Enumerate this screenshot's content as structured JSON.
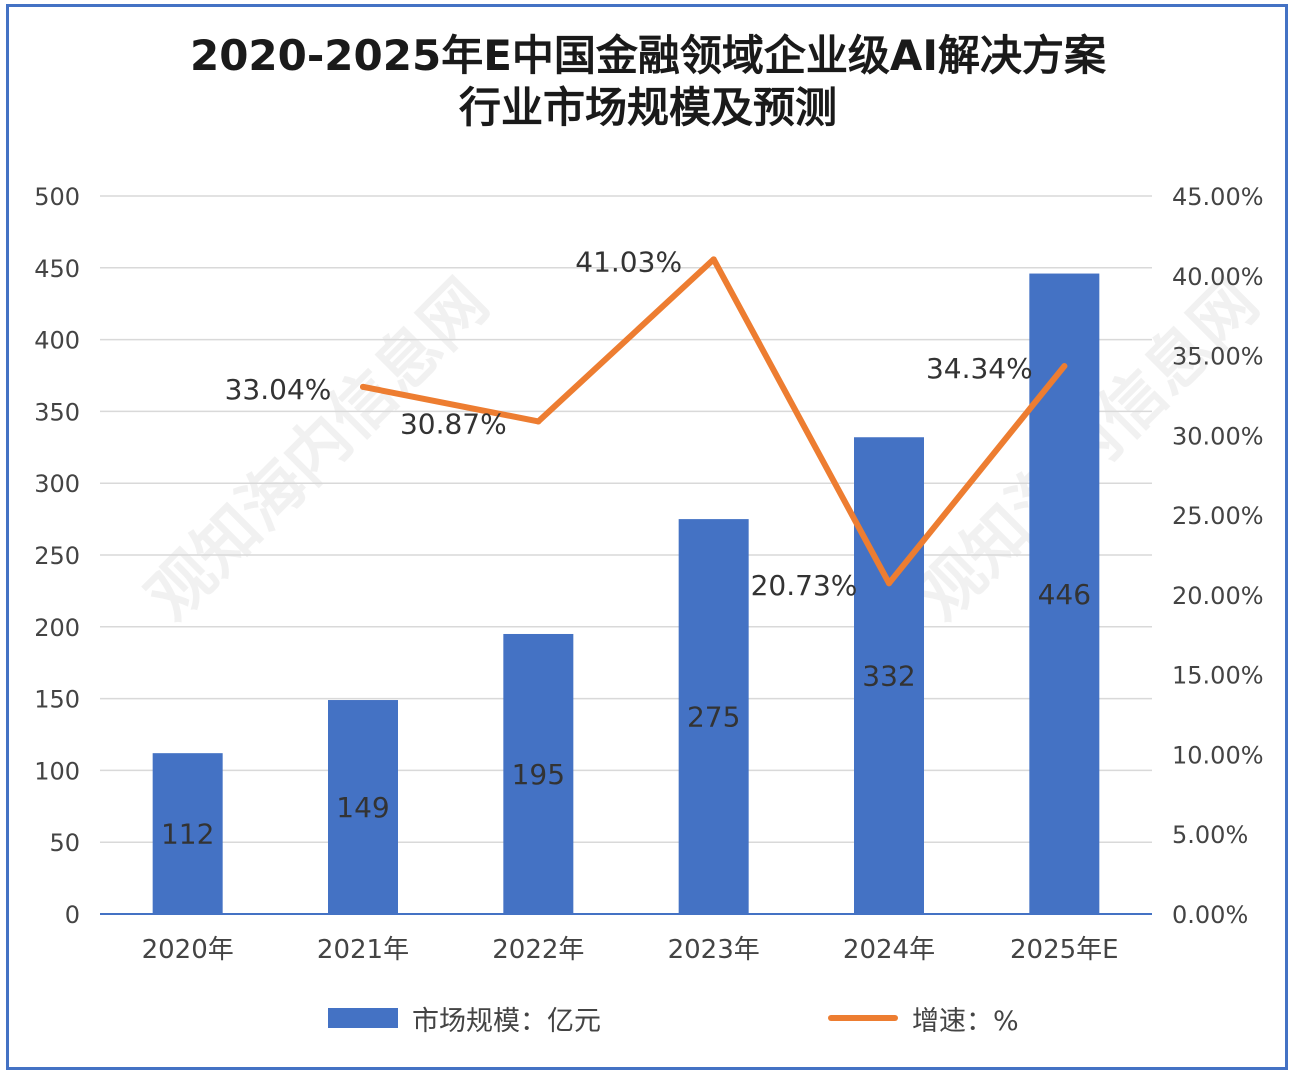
{
  "title": {
    "line1": "2020-2025年E中国金融领域企业级AI解决方案",
    "line2": "行业市场规模及预测"
  },
  "watermark": "观知海内信息网",
  "colors": {
    "bar": "#4472c4",
    "line": "#ed7d31",
    "frame": "#4472c4"
  },
  "legend": {
    "bar_label": "市场规模：亿元",
    "line_label": "增速：%"
  },
  "chart_data": {
    "type": "bar+line",
    "categories": [
      "2020年",
      "2021年",
      "2022年",
      "2023年",
      "2024年",
      "2025年E"
    ],
    "series": [
      {
        "name": "市场规模：亿元",
        "type": "bar",
        "axis": "left",
        "values": [
          112,
          149,
          195,
          275,
          332,
          446
        ],
        "labels": [
          "112",
          "149",
          "195",
          "275",
          "332",
          "446"
        ]
      },
      {
        "name": "增速：%",
        "type": "line",
        "axis": "right",
        "values": [
          null,
          33.04,
          30.87,
          41.03,
          20.73,
          34.34
        ],
        "labels": [
          "",
          "33.04%",
          "30.87%",
          "41.03%",
          "20.73%",
          "34.34%"
        ]
      }
    ],
    "y_left": {
      "min": 0,
      "max": 500,
      "ticks": [
        "0",
        "50",
        "100",
        "150",
        "200",
        "250",
        "300",
        "350",
        "400",
        "450",
        "500"
      ]
    },
    "y_right": {
      "min": 0,
      "max": 45,
      "ticks": [
        "0.00%",
        "5.00%",
        "10.00%",
        "15.00%",
        "20.00%",
        "25.00%",
        "30.00%",
        "35.00%",
        "40.00%",
        "45.00%"
      ]
    },
    "grid": true,
    "legend_position": "bottom"
  }
}
